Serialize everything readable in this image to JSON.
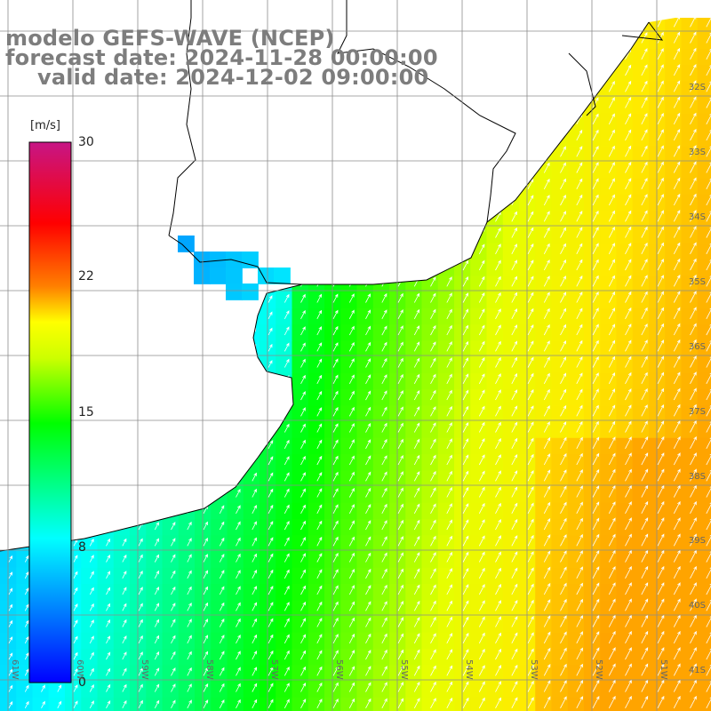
{
  "header": {
    "model_line": "modelo GEFS-WAVE (NCEP)",
    "forecast_line": "forecast date: 2024-11-28 00:00:00",
    "valid_line": "valid date: 2024-12-02 09:00:00"
  },
  "colorbar": {
    "unit": "[m/s]",
    "ticks": [
      "30",
      "22",
      "15",
      "8",
      "0"
    ],
    "tick_values": [
      30,
      22,
      15,
      8,
      0
    ],
    "range": [
      0,
      30
    ],
    "colors": [
      "#0000ff",
      "#00ffff",
      "#00ff00",
      "#ffff00",
      "#ff8000",
      "#ff0000",
      "#c71585"
    ]
  },
  "map": {
    "lat_labels": [
      "32S",
      "33S",
      "34S",
      "35S",
      "36S",
      "37S",
      "38S",
      "39S",
      "40S",
      "41S"
    ],
    "lon_labels": [
      "61W",
      "60W",
      "59W",
      "58W",
      "57W",
      "56W",
      "55W",
      "54W",
      "53W",
      "52W",
      "51W"
    ],
    "land_color": "#ffffff",
    "grid_color": "#8c8c8c",
    "arrow_color": "#ffffff",
    "wind_direction": "toward north-northeast"
  }
}
